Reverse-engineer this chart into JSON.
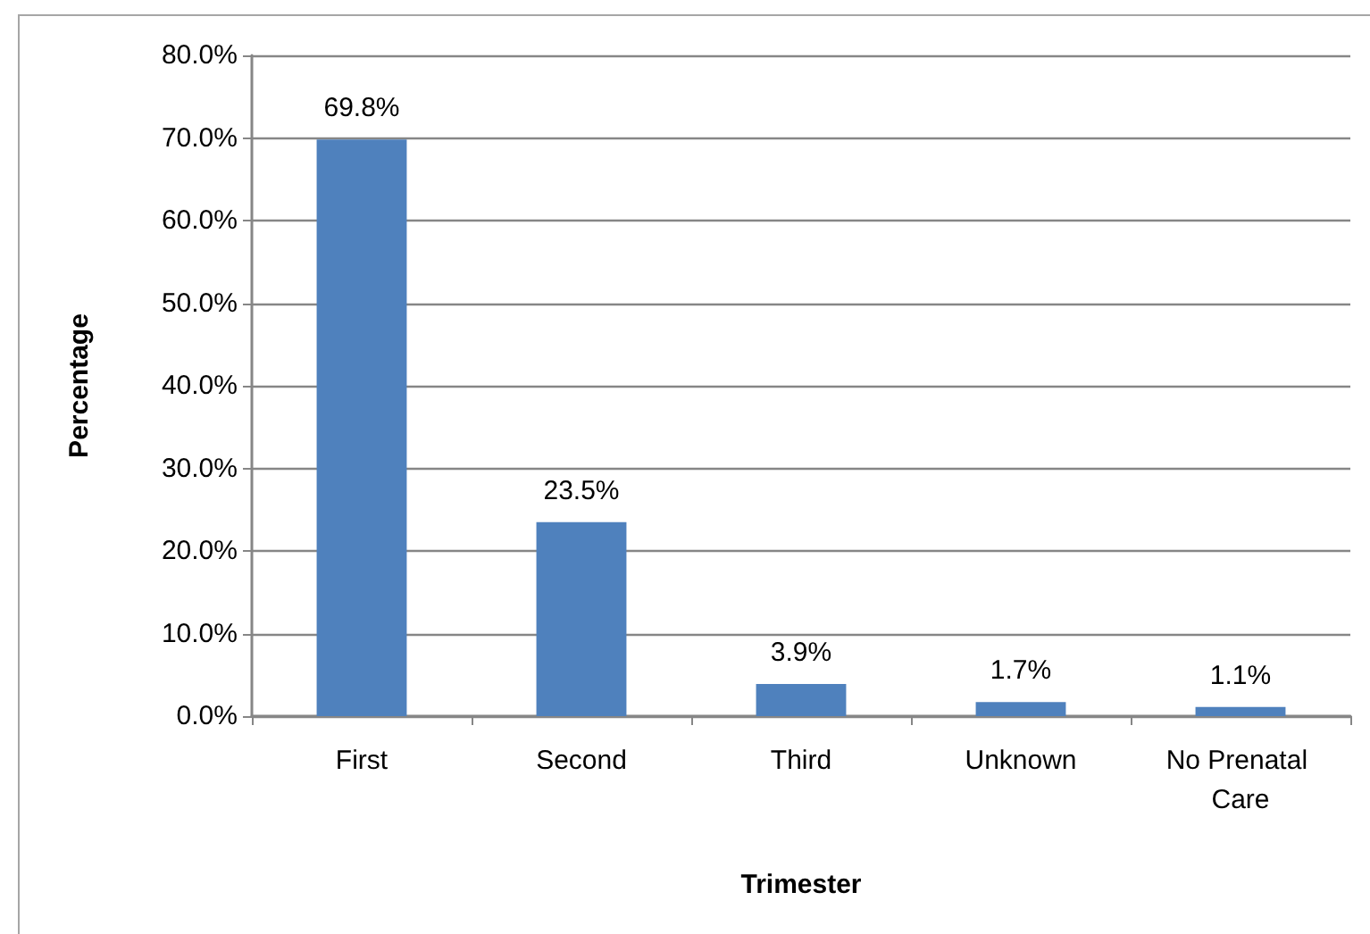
{
  "chart_data": {
    "type": "bar",
    "xlabel": "Trimester",
    "ylabel": "Percentage",
    "categories": [
      "First",
      "Second",
      "Third",
      "Unknown",
      "No Prenatal Care"
    ],
    "values": [
      69.8,
      23.5,
      3.9,
      1.7,
      1.1
    ],
    "color": "#4f81bd",
    "value_labels": [
      "69.8%",
      "23.5%",
      "3.9%",
      "1.7%",
      "1.1%"
    ],
    "ylim": [
      0,
      80
    ],
    "yticks": [
      {
        "value": 0,
        "label": "0.0%"
      },
      {
        "value": 10,
        "label": "10.0%"
      },
      {
        "value": 20,
        "label": "20.0%"
      },
      {
        "value": 30,
        "label": "30.0%"
      },
      {
        "value": 40,
        "label": "40.0%"
      },
      {
        "value": 50,
        "label": "50.0%"
      },
      {
        "value": 60,
        "label": "60.0%"
      },
      {
        "value": 70,
        "label": "70.0%"
      },
      {
        "value": 80,
        "label": "80.0%"
      }
    ],
    "grid": "y"
  }
}
